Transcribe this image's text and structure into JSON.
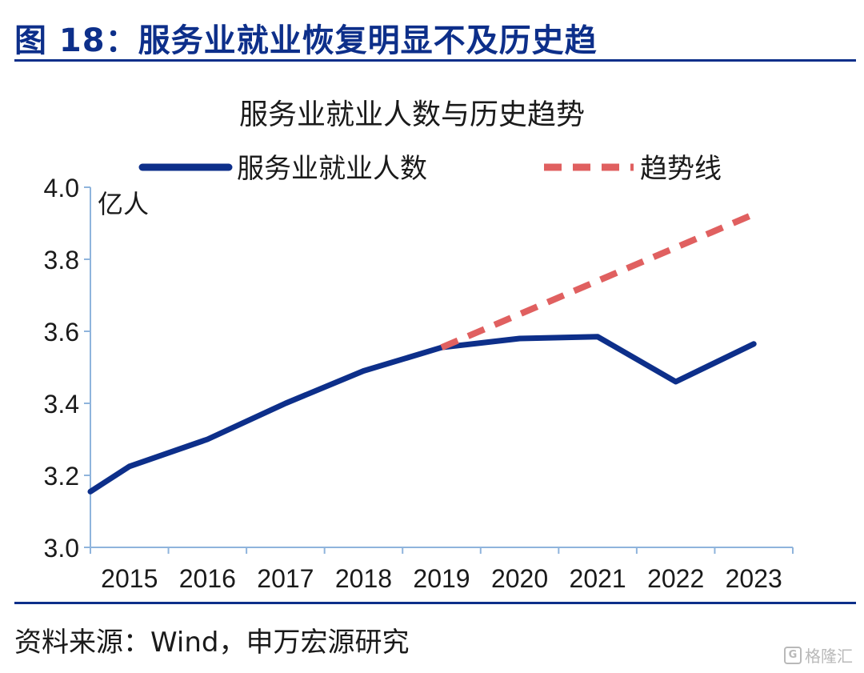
{
  "figure_title": "图 18：服务业就业恢复明显不及历史趋",
  "source": "资料来源：Wind，申万宏源研究",
  "watermark": "格隆汇",
  "colors": {
    "navy": "#0d2f8a",
    "trend": "#e06060",
    "axis": "#8fb4dc"
  },
  "chart_data": {
    "type": "line",
    "title": "服务业就业人数与历史趋势",
    "unit_label": "亿人",
    "categories": [
      "2015",
      "2016",
      "2017",
      "2018",
      "2019",
      "2020",
      "2021",
      "2022",
      "2023"
    ],
    "ylim": [
      3.0,
      4.0
    ],
    "yticks": [
      "3.0",
      "3.2",
      "3.4",
      "3.6",
      "3.8",
      "4.0"
    ],
    "legend_position": "top",
    "grid": false,
    "series": [
      {
        "name": "服务业就业人数",
        "style": "solid",
        "x": [
          2014.0,
          2014.5,
          2015.5,
          2016.5,
          2017.5,
          2018.5,
          2019.5,
          2020.5,
          2021.5,
          2022.5
        ],
        "values": [
          3.155,
          3.225,
          3.3,
          3.4,
          3.49,
          3.555,
          3.58,
          3.585,
          3.46,
          3.565
        ]
      },
      {
        "name": "趋势线",
        "style": "dashed",
        "x": [
          2018.5,
          2022.5
        ],
        "values": [
          3.555,
          3.925
        ]
      }
    ]
  }
}
